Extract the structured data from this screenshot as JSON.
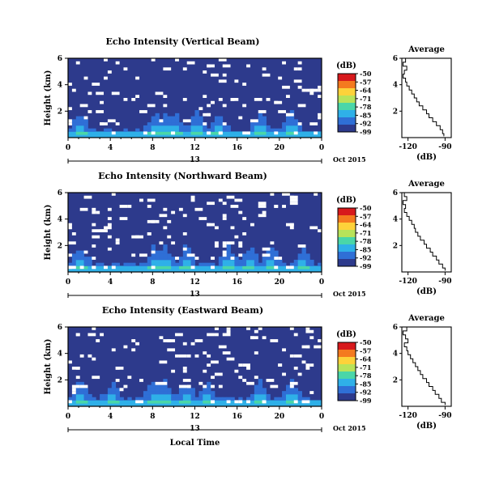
{
  "chart_data": [
    {
      "type": "heatmap",
      "title": "Echo Intensity (Vertical Beam)",
      "ylabel": "Height (km)",
      "ylim": [
        0,
        6
      ],
      "yticks": [
        "6",
        "4",
        "2"
      ],
      "xticks": [
        "0",
        "4",
        "8",
        "12",
        "16",
        "20",
        "0"
      ],
      "xlim": [
        0,
        24
      ],
      "date_row": {
        "day": "13",
        "month_year": "Oct 2015"
      },
      "background_color": "#2d3a8c",
      "colorbar": {
        "unit": "(dB)",
        "labels": [
          "-50",
          "-57",
          "-64",
          "-71",
          "-78",
          "-85",
          "-92",
          "-99"
        ],
        "colors": [
          "#d7191c",
          "#f47a1f",
          "#fdd23a",
          "#b8e35a",
          "#4ad6a8",
          "#2fb0e8",
          "#2f6fd6",
          "#2d3a8c"
        ]
      },
      "white_gap_density": 0.06,
      "low_level_echo": {
        "baseline_km": 0.5,
        "bursts_hours": [
          1,
          8,
          9,
          10,
          12,
          14,
          18,
          21
        ]
      },
      "profile": {
        "title": "Average",
        "xlabel": "(dB)",
        "xticks": [
          "-120",
          "-90"
        ],
        "xlim": [
          -125,
          -85
        ],
        "yticks": [
          "6",
          "4",
          "2"
        ],
        "ylim": [
          0,
          6
        ],
        "heights_km": [
          6.0,
          5.7,
          5.4,
          5.1,
          4.8,
          4.5,
          4.2,
          3.9,
          3.6,
          3.3,
          3.0,
          2.7,
          2.4,
          2.1,
          1.8,
          1.5,
          1.2,
          0.9,
          0.6,
          0.3,
          0.1
        ],
        "values_db": [
          -123,
          -122,
          -124,
          -121,
          -123,
          -124,
          -122,
          -121,
          -119,
          -117,
          -115,
          -113,
          -111,
          -108,
          -105,
          -103,
          -100,
          -97,
          -94,
          -92,
          -91
        ]
      }
    },
    {
      "type": "heatmap",
      "title": "Echo Intensity (Northward Beam)",
      "ylabel": "Height (km)",
      "ylim": [
        0,
        6
      ],
      "yticks": [
        "6",
        "4",
        "2"
      ],
      "xticks": [
        "0",
        "4",
        "8",
        "12",
        "16",
        "20",
        "0"
      ],
      "xlim": [
        0,
        24
      ],
      "date_row": {
        "day": "13",
        "month_year": "Oct 2015"
      },
      "background_color": "#2d3a8c",
      "colorbar": {
        "unit": "(dB)",
        "labels": [
          "-50",
          "-57",
          "-64",
          "-71",
          "-78",
          "-85",
          "-92",
          "-99"
        ],
        "colors": [
          "#d7191c",
          "#f47a1f",
          "#fdd23a",
          "#b8e35a",
          "#4ad6a8",
          "#2fb0e8",
          "#2f6fd6",
          "#2d3a8c"
        ]
      },
      "white_gap_density": 0.07,
      "low_level_echo": {
        "baseline_km": 0.6,
        "bursts_hours": [
          1,
          8,
          9,
          11,
          15,
          17,
          19,
          22
        ]
      },
      "profile": {
        "title": "Average",
        "xlabel": "(dB)",
        "xticks": [
          "-120",
          "-90"
        ],
        "xlim": [
          -125,
          -85
        ],
        "yticks": [
          "6",
          "4",
          "2"
        ],
        "ylim": [
          0,
          6
        ],
        "heights_km": [
          6.0,
          5.7,
          5.4,
          5.1,
          4.8,
          4.5,
          4.2,
          3.9,
          3.6,
          3.3,
          3.0,
          2.7,
          2.4,
          2.1,
          1.8,
          1.5,
          1.2,
          0.9,
          0.6,
          0.3,
          0.1
        ],
        "values_db": [
          -122,
          -123,
          -121,
          -124,
          -122,
          -123,
          -121,
          -119,
          -117,
          -115,
          -114,
          -112,
          -110,
          -107,
          -105,
          -102,
          -100,
          -97,
          -95,
          -92,
          -90
        ]
      }
    },
    {
      "type": "heatmap",
      "title": "Echo Intensity (Eastward Beam)",
      "ylabel": "Height (km)",
      "ylim": [
        0,
        6
      ],
      "yticks": [
        "6",
        "4",
        "2"
      ],
      "xticks": [
        "0",
        "4",
        "8",
        "12",
        "16",
        "20",
        "0"
      ],
      "xlim": [
        0,
        24
      ],
      "date_row": {
        "day": "13",
        "month_year": "Oct 2015"
      },
      "xlabel": "Local Time",
      "background_color": "#2d3a8c",
      "colorbar": {
        "unit": "(dB)",
        "labels": [
          "-50",
          "-57",
          "-64",
          "-71",
          "-78",
          "-85",
          "-92",
          "-99"
        ],
        "colors": [
          "#d7191c",
          "#f47a1f",
          "#fdd23a",
          "#b8e35a",
          "#4ad6a8",
          "#2fb0e8",
          "#2f6fd6",
          "#2d3a8c"
        ]
      },
      "white_gap_density": 0.07,
      "low_level_echo": {
        "baseline_km": 0.5,
        "bursts_hours": [
          1,
          4,
          8,
          9,
          11,
          13,
          18,
          21
        ]
      },
      "profile": {
        "title": "Average",
        "xlabel": "(dB)",
        "xticks": [
          "-120",
          "-90"
        ],
        "xlim": [
          -125,
          -85
        ],
        "yticks": [
          "6",
          "4",
          "2"
        ],
        "ylim": [
          0,
          6
        ],
        "heights_km": [
          6.0,
          5.7,
          5.4,
          5.1,
          4.8,
          4.5,
          4.2,
          3.9,
          3.6,
          3.3,
          3.0,
          2.7,
          2.4,
          2.1,
          1.8,
          1.5,
          1.2,
          0.9,
          0.6,
          0.3,
          0.1
        ],
        "values_db": [
          -122,
          -121,
          -124,
          -122,
          -120,
          -123,
          -121,
          -120,
          -118,
          -116,
          -114,
          -112,
          -110,
          -108,
          -105,
          -103,
          -100,
          -98,
          -95,
          -93,
          -90
        ]
      }
    }
  ]
}
